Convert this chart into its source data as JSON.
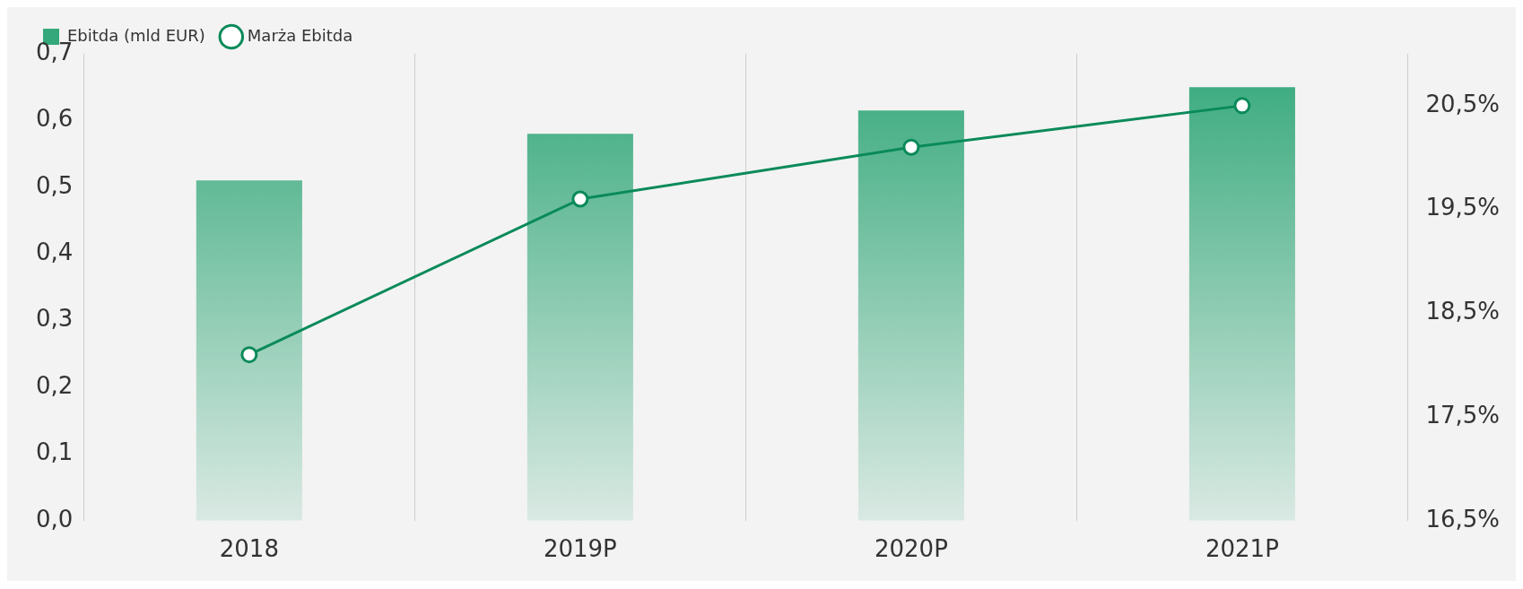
{
  "chart_data": {
    "type": "bar",
    "categories": [
      "2018",
      "2019P",
      "2020P",
      "2021P"
    ],
    "series": [
      {
        "name": "Ebitda (mld EUR)",
        "color": "#34a87a",
        "values": [
          0.51,
          0.58,
          0.615,
          0.65
        ]
      },
      {
        "name": "Marża Ebitda",
        "type": "line",
        "axis": "y2",
        "color": "#0a8a5a",
        "values": [
          18.1,
          19.6,
          20.1,
          20.5
        ]
      }
    ],
    "ylim": [
      0,
      0.7
    ],
    "yticks": [
      {
        "value": 0,
        "label": "0,0"
      },
      {
        "value": 0.1,
        "label": "0,1"
      },
      {
        "value": 0.2,
        "label": "0,2"
      },
      {
        "value": 0.3,
        "label": "0,3"
      },
      {
        "value": 0.4,
        "label": "0,4"
      },
      {
        "value": 0.5,
        "label": "0,5"
      },
      {
        "value": 0.6,
        "label": "0,6"
      },
      {
        "value": 0.7,
        "label": "0,7"
      }
    ],
    "y2lim": [
      16.5,
      21
    ],
    "y2ticks": [
      {
        "value": 16.5,
        "label": "16,5%"
      },
      {
        "value": 17.5,
        "label": "17,5%"
      },
      {
        "value": 18.5,
        "label": "18,5%"
      },
      {
        "value": 19.5,
        "label": "19,5%"
      },
      {
        "value": 20.5,
        "label": "20,5%"
      }
    ],
    "grid": "x",
    "legend": "top left",
    "marker": "circle"
  }
}
